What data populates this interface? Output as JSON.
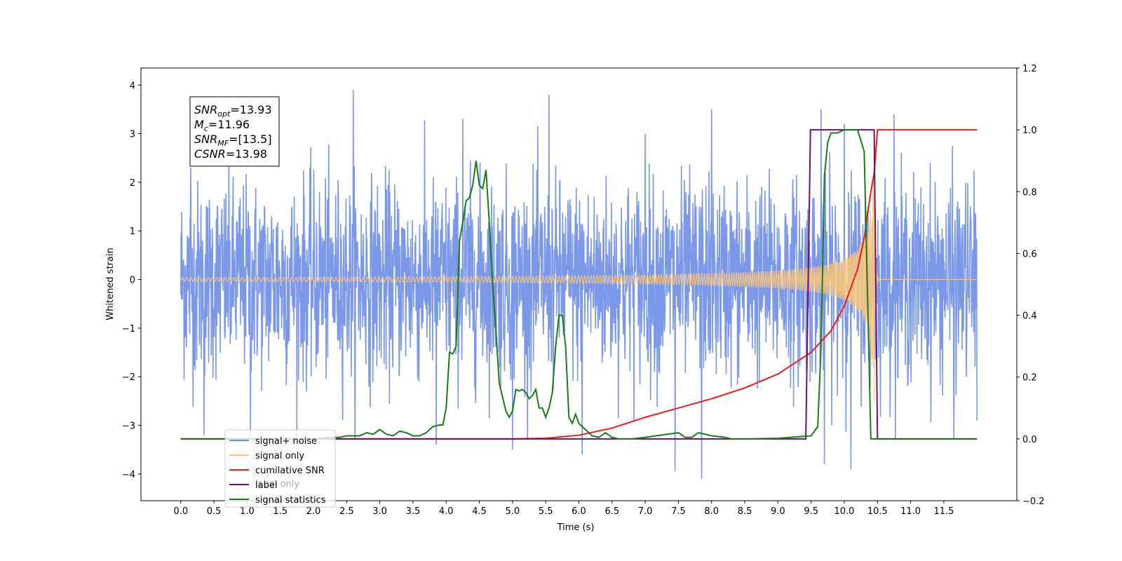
{
  "chart_data": {
    "type": "line",
    "title": "",
    "xlabel": "Time (s)",
    "ylabel": "Whitened strain",
    "y2label": "",
    "xlim": [
      -0.6,
      12.6
    ],
    "ylim": [
      -4.55,
      4.35
    ],
    "y2lim": [
      -0.2,
      1.2
    ],
    "x_ticks": [
      0.0,
      0.5,
      1.0,
      1.5,
      2.0,
      2.5,
      3.0,
      3.5,
      4.0,
      4.5,
      5.0,
      5.5,
      6.0,
      6.5,
      7.0,
      7.5,
      8.0,
      8.5,
      9.0,
      9.5,
      10.0,
      10.5,
      11.0,
      11.5
    ],
    "x_tick_labels": [
      "0.0",
      "0.5",
      "1.0",
      "1.5",
      "2.0",
      "2.5",
      "3.0",
      "3.5",
      "4.0",
      "4.5",
      "5.0",
      "5.5",
      "6.0",
      "6.5",
      "7.0",
      "7.5",
      "8.0",
      "8.5",
      "9.0",
      "9.5",
      "10.0",
      "10.5",
      "11.0",
      "11.5"
    ],
    "y_ticks": [
      -4,
      -3,
      -2,
      -1,
      0,
      1,
      2,
      3,
      4
    ],
    "y_tick_labels": [
      "−4",
      "−3",
      "−2",
      "−1",
      "0",
      "1",
      "2",
      "3",
      "4"
    ],
    "y2_ticks": [
      -0.2,
      0.0,
      0.2,
      0.4,
      0.6,
      0.8,
      1.0,
      1.2
    ],
    "y2_tick_labels": [
      "−0.2",
      "0.0",
      "0.2",
      "0.4",
      "0.6",
      "0.8",
      "1.0",
      "1.2"
    ],
    "grid": false,
    "legend_position": "lower-left",
    "legend": [
      {
        "label": "signal+ noise",
        "color": "#6f8ee6"
      },
      {
        "label": "signal only",
        "color": "#fdc679"
      },
      {
        "label": "cumilative SNR",
        "color": "#ee1c1c"
      },
      {
        "label": "label",
        "color": "#6f0f6f"
      },
      {
        "label": "signal statistics",
        "color": "#1a7a1a"
      }
    ],
    "legend_hidden_text": "label only",
    "annotation": {
      "lines": [
        {
          "main": "SNR",
          "sub": "opt",
          "rest": "=13.93"
        },
        {
          "main": "M",
          "sub": "c",
          "rest": "=11.96"
        },
        {
          "main": "SNR",
          "sub": "MF",
          "rest": "=[13.5]"
        },
        {
          "main": "CSNR",
          "sub": "",
          "rest": "=13.98"
        }
      ]
    },
    "series": [
      {
        "name": "signal+ noise",
        "axis": "left",
        "color": "#6f8ee6",
        "kind": "noise",
        "x_range": [
          0.0,
          12.0
        ],
        "noise_sigma": 1.0,
        "peaks": [
          [
            0.15,
            2.3
          ],
          [
            0.35,
            -3.2
          ],
          [
            1.05,
            -3.3
          ],
          [
            2.6,
            3.9
          ],
          [
            3.85,
            -3.4
          ],
          [
            4.25,
            3.3
          ],
          [
            5.55,
            3.8
          ],
          [
            5.0,
            -3.5
          ],
          [
            6.05,
            -3.6
          ],
          [
            7.0,
            3.0
          ],
          [
            7.45,
            -3.95
          ],
          [
            7.85,
            -4.1
          ],
          [
            8.0,
            3.5
          ],
          [
            9.65,
            3.5
          ],
          [
            9.7,
            -3.8
          ],
          [
            10.0,
            3.2
          ],
          [
            10.75,
            3.4
          ],
          [
            10.1,
            -3.9
          ],
          [
            11.65,
            -3.3
          ],
          [
            12.0,
            -2.9
          ]
        ]
      },
      {
        "name": "signal only",
        "axis": "left",
        "color": "#fdc679",
        "kind": "chirp",
        "x_range": [
          0.0,
          12.0
        ],
        "merger_time": 10.45,
        "peak_amplitude": 2.6
      },
      {
        "name": "cumilative SNR",
        "axis": "right",
        "color": "#ee1c1c",
        "x": [
          0.0,
          5.0,
          5.5,
          6.0,
          6.5,
          7.0,
          7.5,
          8.0,
          8.5,
          9.0,
          9.5,
          9.8,
          10.0,
          10.2,
          10.3,
          10.4,
          10.45,
          10.5,
          12.0
        ],
        "values": [
          0.0,
          0.0,
          0.002,
          0.012,
          0.035,
          0.07,
          0.1,
          0.13,
          0.165,
          0.21,
          0.28,
          0.35,
          0.43,
          0.55,
          0.65,
          0.8,
          0.86,
          1.0,
          1.0
        ]
      },
      {
        "name": "label",
        "axis": "right",
        "color": "#6f0f6f",
        "x": [
          0.0,
          9.42,
          9.49,
          10.45,
          10.5,
          12.0
        ],
        "values": [
          0.0,
          0.0,
          1.0,
          1.0,
          0.0,
          0.0
        ]
      },
      {
        "name": "signal statistics",
        "axis": "right",
        "color": "#1a7a1a",
        "x": [
          0.0,
          2.0,
          2.25,
          2.4,
          2.5,
          2.7,
          2.8,
          2.9,
          3.0,
          3.1,
          3.2,
          3.3,
          3.4,
          3.5,
          3.6,
          3.7,
          3.8,
          3.9,
          3.95,
          4.0,
          4.05,
          4.1,
          4.15,
          4.2,
          4.25,
          4.3,
          4.35,
          4.4,
          4.45,
          4.5,
          4.55,
          4.6,
          4.65,
          4.7,
          4.75,
          4.8,
          4.9,
          4.95,
          5.0,
          5.05,
          5.1,
          5.15,
          5.2,
          5.25,
          5.3,
          5.35,
          5.4,
          5.45,
          5.5,
          5.55,
          5.6,
          5.65,
          5.7,
          5.75,
          5.8,
          5.85,
          5.9,
          5.95,
          6.0,
          6.05,
          6.1,
          6.2,
          6.3,
          6.4,
          6.5,
          6.6,
          6.7,
          6.8,
          7.0,
          7.5,
          7.6,
          7.7,
          7.8,
          8.0,
          8.2,
          8.3,
          8.5,
          9.0,
          9.5,
          9.6,
          9.65,
          9.7,
          9.75,
          9.8,
          9.9,
          10.0,
          10.1,
          10.2,
          10.3,
          10.4,
          10.45,
          10.5,
          12.0
        ],
        "values": [
          0.0,
          0.0,
          0.005,
          0.005,
          0.01,
          0.01,
          0.02,
          0.015,
          0.03,
          0.015,
          0.01,
          0.025,
          0.02,
          0.01,
          0.01,
          0.02,
          0.04,
          0.045,
          0.045,
          0.1,
          0.28,
          0.275,
          0.3,
          0.64,
          0.7,
          0.77,
          0.78,
          0.82,
          0.9,
          0.82,
          0.81,
          0.87,
          0.7,
          0.5,
          0.35,
          0.18,
          0.09,
          0.07,
          0.09,
          0.16,
          0.155,
          0.16,
          0.15,
          0.13,
          0.14,
          0.16,
          0.1,
          0.1,
          0.07,
          0.1,
          0.15,
          0.3,
          0.4,
          0.4,
          0.3,
          0.07,
          0.05,
          0.08,
          0.05,
          0.04,
          0.03,
          0.01,
          0.005,
          0.02,
          0.005,
          0.0,
          0.0,
          0.0,
          0.005,
          0.02,
          0.005,
          0.005,
          0.02,
          0.01,
          0.005,
          0.0,
          0.0,
          0.002,
          0.01,
          0.04,
          0.3,
          0.85,
          0.96,
          0.99,
          0.99,
          1.0,
          1.0,
          1.0,
          0.93,
          0.0,
          0.0,
          0.0,
          0.0
        ]
      }
    ]
  }
}
